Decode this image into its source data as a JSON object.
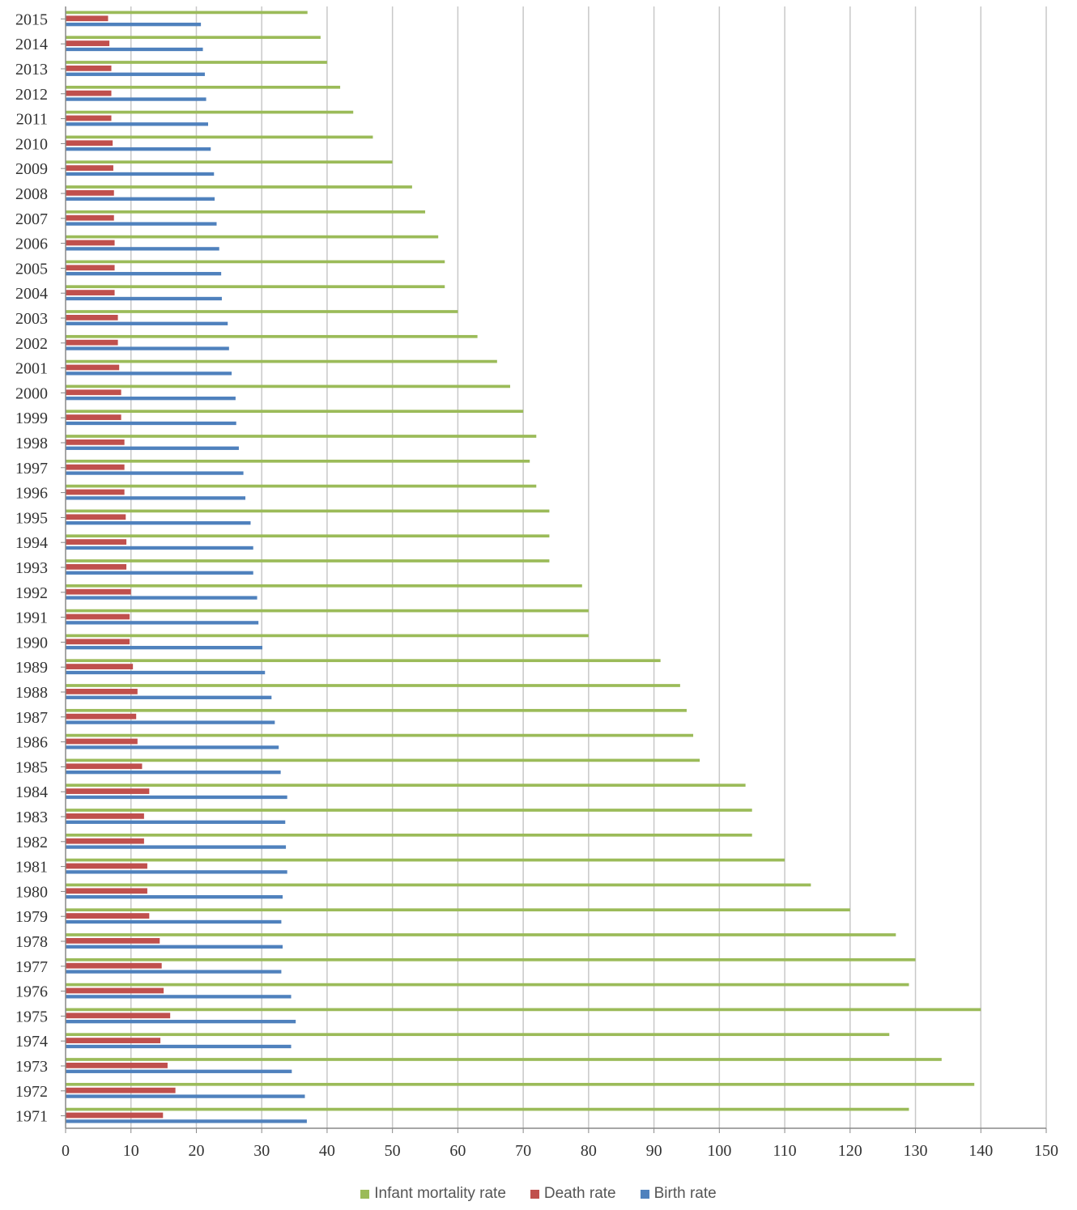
{
  "chart_data": {
    "type": "bar",
    "orientation": "horizontal",
    "title": "",
    "xlabel": "",
    "ylabel": "",
    "xlim": [
      0,
      150
    ],
    "xticks": [
      0,
      10,
      20,
      30,
      40,
      50,
      60,
      70,
      80,
      90,
      100,
      110,
      120,
      130,
      140,
      150
    ],
    "grid": true,
    "legend_position": "bottom",
    "categories": [
      "2015",
      "2014",
      "2013",
      "2012",
      "2011",
      "2010",
      "2009",
      "2008",
      "2007",
      "2006",
      "2005",
      "2004",
      "2003",
      "2002",
      "2001",
      "2000",
      "1999",
      "1998",
      "1997",
      "1996",
      "1995",
      "1994",
      "1993",
      "1992",
      "1991",
      "1990",
      "1989",
      "1988",
      "1987",
      "1986",
      "1985",
      "1984",
      "1983",
      "1982",
      "1981",
      "1980",
      "1979",
      "1978",
      "1977",
      "1976",
      "1975",
      "1974",
      "1973",
      "1972",
      "1971"
    ],
    "series": [
      {
        "name": "Infant mortality rate",
        "color": "#9bbb59",
        "values": [
          37,
          39,
          40,
          42,
          44,
          47,
          50,
          53,
          55,
          57,
          58,
          58,
          60,
          63,
          66,
          68,
          70,
          72,
          71,
          72,
          74,
          74,
          74,
          79,
          80,
          80,
          91,
          94,
          95,
          96,
          97,
          104,
          105,
          105,
          110,
          114,
          120,
          127,
          130,
          129,
          140,
          126,
          134,
          139,
          129
        ]
      },
      {
        "name": "Death rate",
        "color": "#c0504d",
        "values": [
          6.5,
          6.7,
          7.0,
          7.0,
          7.0,
          7.2,
          7.3,
          7.4,
          7.4,
          7.5,
          7.5,
          7.5,
          8.0,
          8.0,
          8.2,
          8.5,
          8.5,
          9.0,
          9.0,
          9.0,
          9.2,
          9.3,
          9.3,
          10.0,
          9.8,
          9.8,
          10.3,
          11.0,
          10.8,
          11.0,
          11.7,
          12.8,
          12.0,
          12.0,
          12.5,
          12.5,
          12.8,
          14.4,
          14.7,
          15.0,
          16.0,
          14.5,
          15.6,
          16.8,
          14.9
        ]
      },
      {
        "name": "Birth rate",
        "color": "#4f81bd",
        "values": [
          20.7,
          21.0,
          21.3,
          21.5,
          21.8,
          22.2,
          22.7,
          22.8,
          23.1,
          23.5,
          23.8,
          23.9,
          24.8,
          25.0,
          25.4,
          26.0,
          26.1,
          26.5,
          27.2,
          27.5,
          28.3,
          28.7,
          28.7,
          29.3,
          29.5,
          30.1,
          30.5,
          31.5,
          32.0,
          32.6,
          32.9,
          33.9,
          33.6,
          33.7,
          33.9,
          33.2,
          33.0,
          33.2,
          33.0,
          34.5,
          35.2,
          34.5,
          34.6,
          36.6,
          36.9
        ]
      }
    ]
  }
}
